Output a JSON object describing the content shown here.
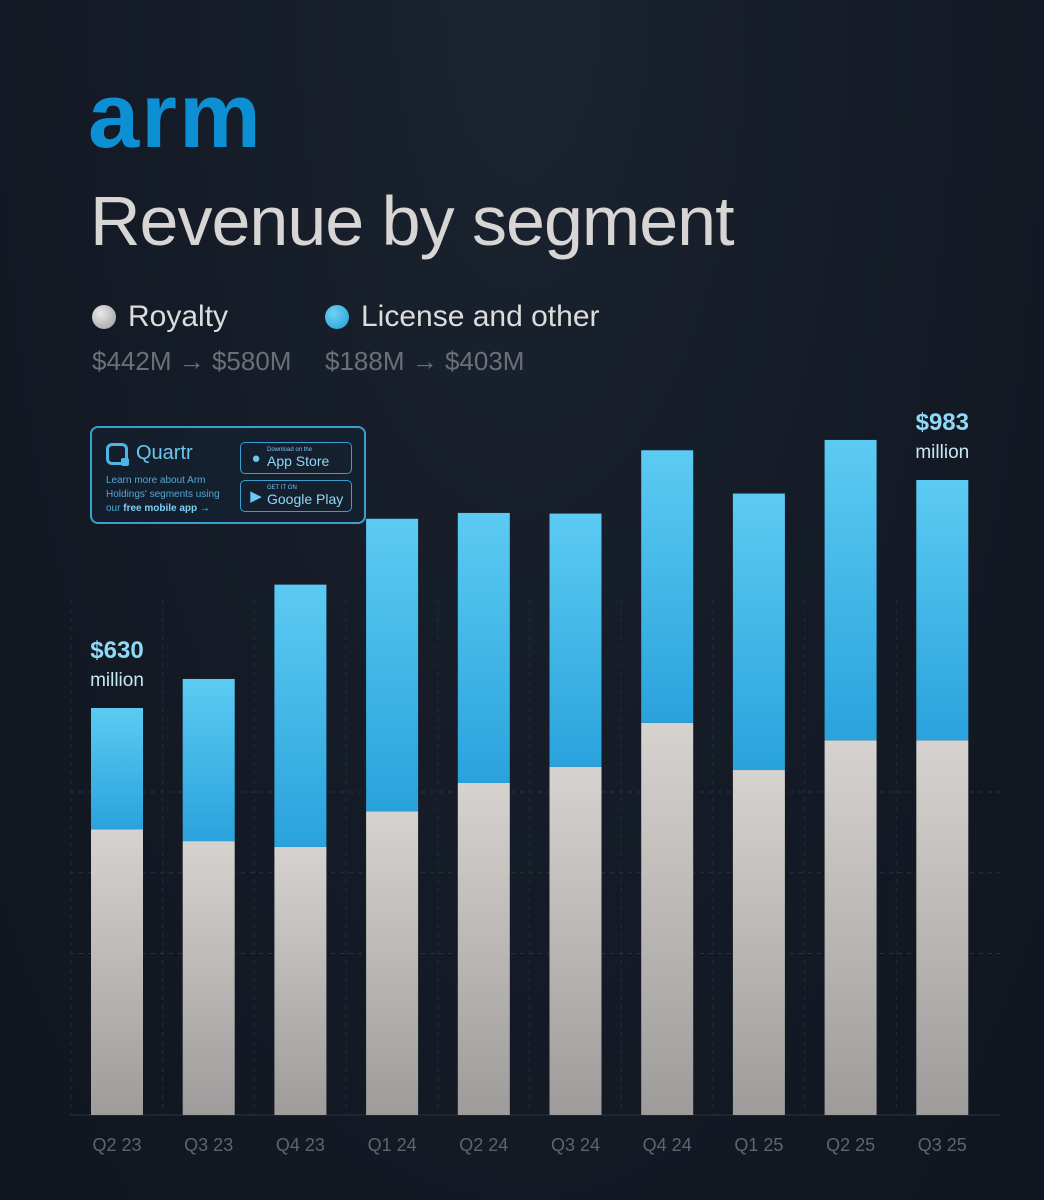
{
  "brand": {
    "logo_text": "arm"
  },
  "title": "Revenue by segment",
  "legend": [
    {
      "name": "Royalty",
      "range": "$442M → $580M",
      "color": "#c9c6c4"
    },
    {
      "name": "License and other",
      "range": "$188M → $403M",
      "color": "#3eb6e8"
    }
  ],
  "promo": {
    "brand_name": "Quartr",
    "text_line1": "Learn more about Arm",
    "text_line2": "Holdings' segments using",
    "text_line3_prefix": "our",
    "text_line3_bold": "free mobile app →",
    "app_store_small": "Download on the",
    "app_store_big": "App Store",
    "google_small": "GET IT ON",
    "google_big": "Google Play"
  },
  "chart_data": {
    "type": "bar",
    "stacked": true,
    "categories": [
      "Q2 23",
      "Q3 23",
      "Q4 23",
      "Q1 24",
      "Q2 24",
      "Q3 24",
      "Q4 24",
      "Q1 25",
      "Q2 25",
      "Q3 25"
    ],
    "series": [
      {
        "name": "Royalty",
        "color": "#c9c6c4",
        "values": [
          442,
          424,
          415,
          470,
          514,
          539,
          607,
          534,
          580,
          580
        ]
      },
      {
        "name": "License and other",
        "color": "#3eb6e8",
        "values": [
          188,
          251,
          406,
          453,
          418,
          392,
          422,
          428,
          465,
          403
        ]
      }
    ],
    "annotations": [
      {
        "category": "Q2 23",
        "value": "$630",
        "unit": "million"
      },
      {
        "category": "Q3 25",
        "value": "$983",
        "unit": "million"
      }
    ],
    "ylim": [
      0,
      1000
    ],
    "grid": true,
    "legend": "top-left"
  }
}
